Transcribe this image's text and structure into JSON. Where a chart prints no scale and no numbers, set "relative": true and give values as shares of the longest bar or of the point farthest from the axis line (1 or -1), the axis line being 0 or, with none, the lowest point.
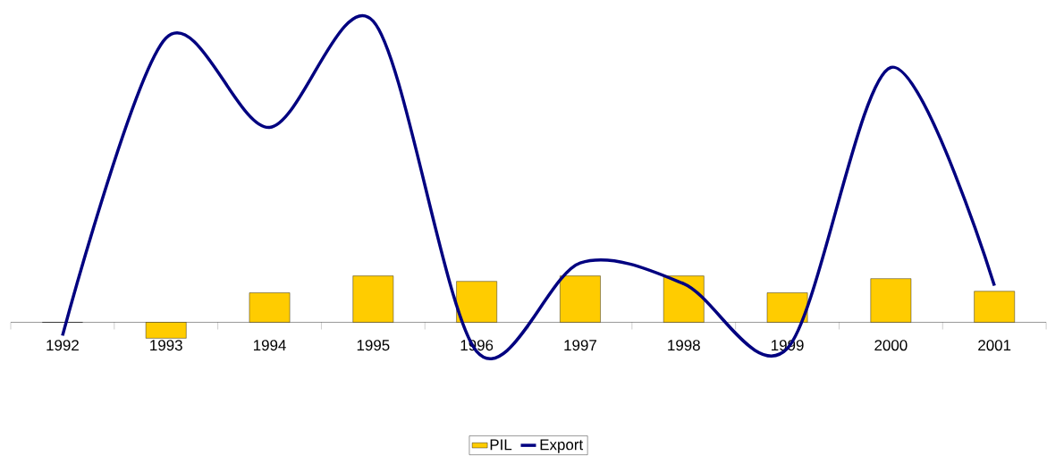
{
  "chart_data": {
    "type": "bar",
    "relative": true,
    "legend": "bottom",
    "categories": [
      "1992",
      "1993",
      "1994",
      "1995",
      "1996",
      "1997",
      "1998",
      "1999",
      "2000",
      "2001"
    ],
    "series": [
      {
        "name": "PIL",
        "color": "#ffcc00",
        "values": [
          0,
          -0.053,
          0.098,
          0.154,
          0.136,
          0.154,
          0.154,
          0.098,
          0.145,
          0.103
        ]
      },
      {
        "name": "Export",
        "type": "line",
        "color": "#000080",
        "values": [
          -0.044,
          0.944,
          0.647,
          1,
          -0.097,
          0.197,
          0.128,
          -0.087,
          0.846,
          0.122
        ]
      }
    ]
  }
}
